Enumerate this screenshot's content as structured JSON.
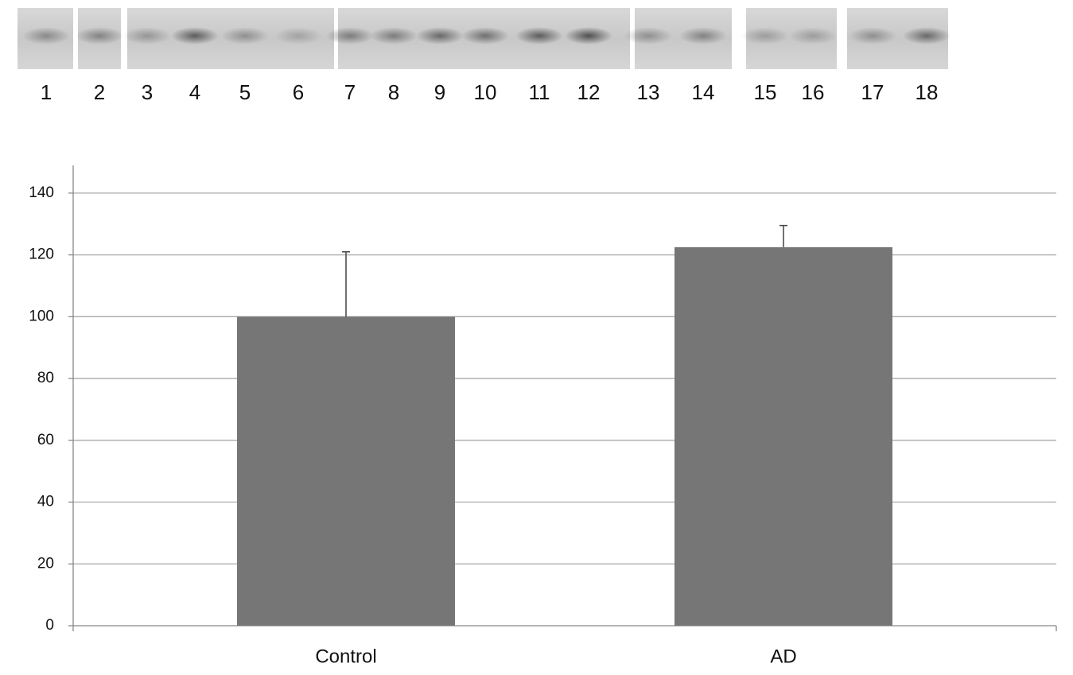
{
  "blot": {
    "lanes": [
      "1",
      "2",
      "3",
      "4",
      "5",
      "6",
      "7",
      "8",
      "9",
      "10",
      "11",
      "12",
      "13",
      "14",
      "15",
      "16",
      "17",
      "18"
    ]
  },
  "chart_data": {
    "type": "bar",
    "categories": [
      "Control",
      "AD"
    ],
    "values": [
      100,
      122.5
    ],
    "errors": [
      21,
      7
    ],
    "color": "#767676",
    "ylim": [
      0,
      150
    ],
    "yticks": [
      0,
      20,
      40,
      60,
      80,
      100,
      120,
      140
    ],
    "grid": true
  }
}
